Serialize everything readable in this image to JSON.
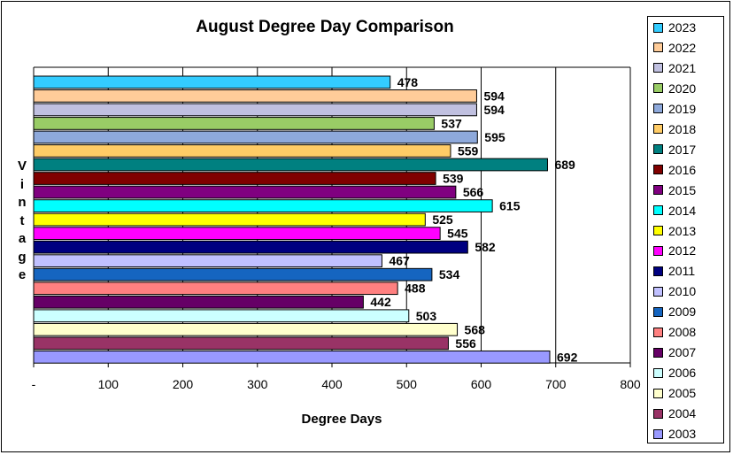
{
  "chart_data": {
    "type": "bar",
    "orientation": "horizontal",
    "title": "August Degree Day Comparison",
    "xlabel": "Degree Days",
    "ylabel": "Vintage",
    "xlim": [
      0,
      800
    ],
    "x_ticks": [
      "-",
      "100",
      "200",
      "300",
      "400",
      "500",
      "600",
      "700",
      "800"
    ],
    "grid": "vertical major gridlines",
    "legend_position": "right",
    "categories": [
      "2023",
      "2022",
      "2021",
      "2020",
      "2019",
      "2018",
      "2017",
      "2016",
      "2015",
      "2014",
      "2013",
      "2012",
      "2011",
      "2010",
      "2009",
      "2008",
      "2007",
      "2006",
      "2005",
      "2004",
      "2003"
    ],
    "values": [
      478,
      594,
      594,
      537,
      595,
      559,
      689,
      539,
      566,
      615,
      525,
      545,
      582,
      467,
      534,
      488,
      442,
      503,
      568,
      556,
      692
    ],
    "colors": [
      "#33CCFF",
      "#FFCC99",
      "#C0C0E0",
      "#99CC66",
      "#8EA9DB",
      "#FFCC66",
      "#008080",
      "#800000",
      "#800080",
      "#00FFFF",
      "#FFFF00",
      "#FF00FF",
      "#000080",
      "#C0C0FF",
      "#1565C0",
      "#FF8080",
      "#660066",
      "#CCFFFF",
      "#FFFFCC",
      "#993366",
      "#9999FF"
    ]
  }
}
